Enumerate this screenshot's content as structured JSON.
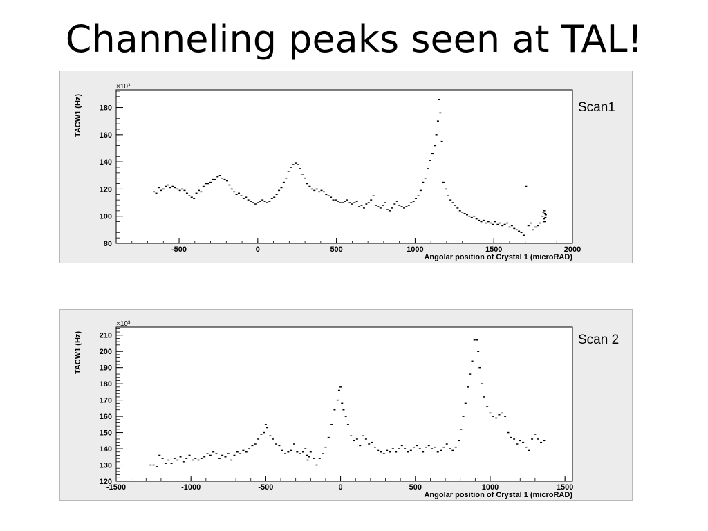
{
  "slide": {
    "title": "Channeling peaks seen at TAL!"
  },
  "chart_data": [
    {
      "type": "scatter",
      "label": "Scan1",
      "ylabel": "TACW1 (Hz)",
      "xlabel": "Angolar position of Crystal 1 (microRAD)",
      "y_multiplier": "×10³",
      "xlim": [
        -900,
        2000
      ],
      "ylim": [
        80,
        193
      ],
      "xticks": [
        -500,
        0,
        500,
        1000,
        1500,
        2000
      ],
      "yticks": [
        80,
        100,
        120,
        140,
        160,
        180
      ],
      "grid": false,
      "points": [
        [
          -660,
          118
        ],
        [
          -645,
          117
        ],
        [
          -630,
          121
        ],
        [
          -615,
          119
        ],
        [
          -600,
          120
        ],
        [
          -585,
          122
        ],
        [
          -570,
          123
        ],
        [
          -555,
          121
        ],
        [
          -540,
          122
        ],
        [
          -525,
          121
        ],
        [
          -510,
          120
        ],
        [
          -495,
          119
        ],
        [
          -480,
          120
        ],
        [
          -465,
          119
        ],
        [
          -450,
          117
        ],
        [
          -435,
          115
        ],
        [
          -420,
          114
        ],
        [
          -405,
          113
        ],
        [
          -390,
          117
        ],
        [
          -375,
          119
        ],
        [
          -360,
          118
        ],
        [
          -345,
          122
        ],
        [
          -330,
          124
        ],
        [
          -315,
          124
        ],
        [
          -300,
          125
        ],
        [
          -285,
          127
        ],
        [
          -270,
          127
        ],
        [
          -255,
          129
        ],
        [
          -240,
          130
        ],
        [
          -225,
          128
        ],
        [
          -210,
          127
        ],
        [
          -195,
          126
        ],
        [
          -180,
          123
        ],
        [
          -165,
          120
        ],
        [
          -150,
          118
        ],
        [
          -135,
          116
        ],
        [
          -120,
          117
        ],
        [
          -105,
          115
        ],
        [
          -90,
          113
        ],
        [
          -75,
          114
        ],
        [
          -60,
          112
        ],
        [
          -45,
          111
        ],
        [
          -30,
          110
        ],
        [
          -15,
          109
        ],
        [
          0,
          110
        ],
        [
          15,
          111
        ],
        [
          30,
          112
        ],
        [
          45,
          111
        ],
        [
          60,
          110
        ],
        [
          75,
          111
        ],
        [
          90,
          113
        ],
        [
          105,
          114
        ],
        [
          120,
          116
        ],
        [
          135,
          119
        ],
        [
          150,
          121
        ],
        [
          165,
          125
        ],
        [
          180,
          128
        ],
        [
          195,
          133
        ],
        [
          210,
          136
        ],
        [
          225,
          138
        ],
        [
          240,
          139
        ],
        [
          255,
          138
        ],
        [
          270,
          135
        ],
        [
          285,
          131
        ],
        [
          300,
          128
        ],
        [
          315,
          124
        ],
        [
          330,
          122
        ],
        [
          345,
          120
        ],
        [
          360,
          119
        ],
        [
          375,
          120
        ],
        [
          390,
          118
        ],
        [
          405,
          119
        ],
        [
          420,
          118
        ],
        [
          435,
          116
        ],
        [
          450,
          115
        ],
        [
          465,
          114
        ],
        [
          480,
          112
        ],
        [
          495,
          112
        ],
        [
          510,
          111
        ],
        [
          525,
          110
        ],
        [
          540,
          110
        ],
        [
          555,
          111
        ],
        [
          570,
          112
        ],
        [
          585,
          110
        ],
        [
          600,
          109
        ],
        [
          615,
          110
        ],
        [
          630,
          111
        ],
        [
          645,
          107
        ],
        [
          660,
          108
        ],
        [
          675,
          106
        ],
        [
          690,
          109
        ],
        [
          705,
          110
        ],
        [
          720,
          112
        ],
        [
          735,
          115
        ],
        [
          750,
          108
        ],
        [
          765,
          107
        ],
        [
          780,
          106
        ],
        [
          795,
          108
        ],
        [
          810,
          110
        ],
        [
          825,
          105
        ],
        [
          840,
          104
        ],
        [
          855,
          106
        ],
        [
          870,
          109
        ],
        [
          885,
          111
        ],
        [
          900,
          108
        ],
        [
          915,
          107
        ],
        [
          930,
          106
        ],
        [
          945,
          107
        ],
        [
          960,
          108
        ],
        [
          975,
          110
        ],
        [
          990,
          111
        ],
        [
          1005,
          113
        ],
        [
          1020,
          115
        ],
        [
          1035,
          119
        ],
        [
          1050,
          125
        ],
        [
          1065,
          128
        ],
        [
          1080,
          135
        ],
        [
          1095,
          141
        ],
        [
          1110,
          146
        ],
        [
          1125,
          152
        ],
        [
          1135,
          160
        ],
        [
          1145,
          170
        ],
        [
          1150,
          186
        ],
        [
          1160,
          176
        ],
        [
          1170,
          155
        ],
        [
          1180,
          125
        ],
        [
          1195,
          120
        ],
        [
          1210,
          115
        ],
        [
          1225,
          112
        ],
        [
          1240,
          110
        ],
        [
          1255,
          108
        ],
        [
          1270,
          106
        ],
        [
          1285,
          104
        ],
        [
          1300,
          103
        ],
        [
          1315,
          102
        ],
        [
          1330,
          101
        ],
        [
          1345,
          100
        ],
        [
          1360,
          99
        ],
        [
          1375,
          100
        ],
        [
          1390,
          98
        ],
        [
          1405,
          97
        ],
        [
          1420,
          96
        ],
        [
          1435,
          97
        ],
        [
          1450,
          95
        ],
        [
          1465,
          96
        ],
        [
          1480,
          95
        ],
        [
          1495,
          94
        ],
        [
          1510,
          96
        ],
        [
          1525,
          94
        ],
        [
          1540,
          95
        ],
        [
          1555,
          93
        ],
        [
          1570,
          94
        ],
        [
          1585,
          95
        ],
        [
          1600,
          92
        ],
        [
          1615,
          93
        ],
        [
          1630,
          91
        ],
        [
          1645,
          90
        ],
        [
          1660,
          89
        ],
        [
          1675,
          88
        ],
        [
          1690,
          86
        ],
        [
          1705,
          122
        ],
        [
          1720,
          93
        ],
        [
          1735,
          95
        ],
        [
          1750,
          90
        ],
        [
          1765,
          92
        ],
        [
          1780,
          93
        ],
        [
          1795,
          95
        ],
        [
          1810,
          100
        ],
        [
          1815,
          103
        ],
        [
          1818,
          98
        ],
        [
          1820,
          104
        ],
        [
          1822,
          96
        ],
        [
          1825,
          102
        ],
        [
          1828,
          99
        ],
        [
          1830,
          101
        ]
      ]
    },
    {
      "type": "scatter",
      "label": "Scan 2",
      "ylabel": "TACW1 (Hz)",
      "xlabel": "Angolar position of Crystal 1 (microRAD)",
      "y_multiplier": "×10³",
      "xlim": [
        -1500,
        1550
      ],
      "ylim": [
        120,
        215
      ],
      "xticks": [
        -1500,
        -1000,
        -500,
        0,
        500,
        1000,
        1500
      ],
      "yticks": [
        120,
        130,
        140,
        150,
        160,
        170,
        180,
        190,
        200,
        210
      ],
      "grid": false,
      "points": [
        [
          -1270,
          130
        ],
        [
          -1250,
          130
        ],
        [
          -1230,
          129
        ],
        [
          -1210,
          136
        ],
        [
          -1190,
          134
        ],
        [
          -1170,
          131
        ],
        [
          -1150,
          133
        ],
        [
          -1130,
          131
        ],
        [
          -1110,
          134
        ],
        [
          -1090,
          133
        ],
        [
          -1070,
          135
        ],
        [
          -1050,
          132
        ],
        [
          -1030,
          134
        ],
        [
          -1010,
          136
        ],
        [
          -990,
          133
        ],
        [
          -970,
          134
        ],
        [
          -950,
          133
        ],
        [
          -930,
          134
        ],
        [
          -910,
          135
        ],
        [
          -890,
          137
        ],
        [
          -870,
          136
        ],
        [
          -850,
          138
        ],
        [
          -830,
          137
        ],
        [
          -810,
          134
        ],
        [
          -790,
          136
        ],
        [
          -770,
          135
        ],
        [
          -750,
          137
        ],
        [
          -730,
          133
        ],
        [
          -710,
          136
        ],
        [
          -690,
          138
        ],
        [
          -670,
          137
        ],
        [
          -650,
          139
        ],
        [
          -630,
          138
        ],
        [
          -610,
          140
        ],
        [
          -590,
          142
        ],
        [
          -570,
          143
        ],
        [
          -550,
          146
        ],
        [
          -530,
          149
        ],
        [
          -510,
          150
        ],
        [
          -500,
          155
        ],
        [
          -490,
          153
        ],
        [
          -470,
          148
        ],
        [
          -450,
          146
        ],
        [
          -430,
          143
        ],
        [
          -410,
          142
        ],
        [
          -390,
          139
        ],
        [
          -370,
          137
        ],
        [
          -350,
          138
        ],
        [
          -330,
          139
        ],
        [
          -310,
          143
        ],
        [
          -290,
          138
        ],
        [
          -270,
          137
        ],
        [
          -250,
          138
        ],
        [
          -235,
          140
        ],
        [
          -225,
          136
        ],
        [
          -220,
          133
        ],
        [
          -210,
          135
        ],
        [
          -200,
          138
        ],
        [
          -180,
          134
        ],
        [
          -160,
          130
        ],
        [
          -140,
          134
        ],
        [
          -120,
          137
        ],
        [
          -100,
          141
        ],
        [
          -80,
          147
        ],
        [
          -60,
          155
        ],
        [
          -40,
          164
        ],
        [
          -20,
          170
        ],
        [
          -10,
          176
        ],
        [
          0,
          178
        ],
        [
          10,
          168
        ],
        [
          20,
          164
        ],
        [
          35,
          160
        ],
        [
          50,
          155
        ],
        [
          70,
          148
        ],
        [
          90,
          145
        ],
        [
          110,
          146
        ],
        [
          130,
          142
        ],
        [
          150,
          148
        ],
        [
          170,
          146
        ],
        [
          190,
          143
        ],
        [
          210,
          144
        ],
        [
          230,
          141
        ],
        [
          250,
          139
        ],
        [
          270,
          138
        ],
        [
          290,
          137
        ],
        [
          310,
          139
        ],
        [
          330,
          138
        ],
        [
          350,
          140
        ],
        [
          370,
          138
        ],
        [
          390,
          140
        ],
        [
          410,
          142
        ],
        [
          430,
          140
        ],
        [
          450,
          138
        ],
        [
          470,
          139
        ],
        [
          490,
          141
        ],
        [
          510,
          142
        ],
        [
          530,
          140
        ],
        [
          550,
          138
        ],
        [
          570,
          141
        ],
        [
          590,
          142
        ],
        [
          610,
          140
        ],
        [
          630,
          141
        ],
        [
          650,
          138
        ],
        [
          670,
          139
        ],
        [
          690,
          141
        ],
        [
          710,
          143
        ],
        [
          730,
          140
        ],
        [
          750,
          139
        ],
        [
          770,
          141
        ],
        [
          790,
          145
        ],
        [
          805,
          152
        ],
        [
          820,
          160
        ],
        [
          835,
          168
        ],
        [
          850,
          178
        ],
        [
          865,
          186
        ],
        [
          880,
          194
        ],
        [
          895,
          207
        ],
        [
          910,
          207
        ],
        [
          920,
          200
        ],
        [
          930,
          190
        ],
        [
          945,
          180
        ],
        [
          960,
          172
        ],
        [
          980,
          166
        ],
        [
          1000,
          162
        ],
        [
          1020,
          160
        ],
        [
          1040,
          159
        ],
        [
          1060,
          161
        ],
        [
          1080,
          162
        ],
        [
          1100,
          160
        ],
        [
          1120,
          150
        ],
        [
          1140,
          147
        ],
        [
          1160,
          146
        ],
        [
          1180,
          143
        ],
        [
          1200,
          145
        ],
        [
          1220,
          144
        ],
        [
          1240,
          141
        ],
        [
          1260,
          139
        ],
        [
          1280,
          146
        ],
        [
          1300,
          149
        ],
        [
          1320,
          146
        ],
        [
          1340,
          144
        ],
        [
          1360,
          145
        ]
      ]
    }
  ]
}
